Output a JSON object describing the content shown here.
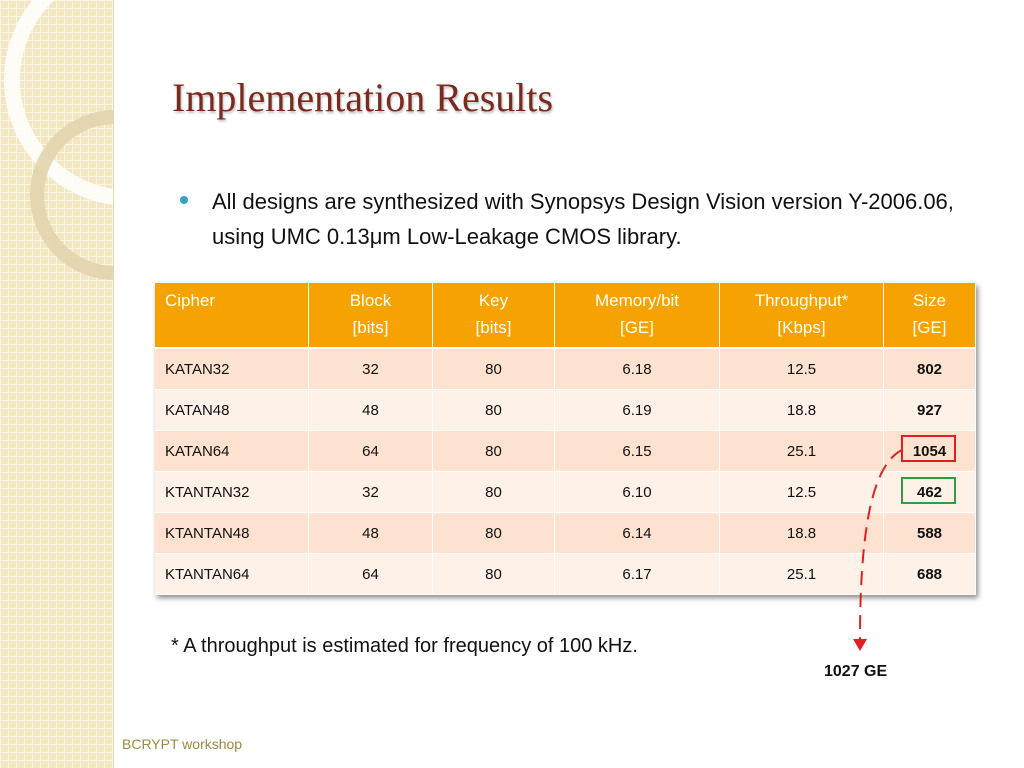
{
  "slide": {
    "title": "Implementation Results",
    "bullet": "All designs are synthesized with Synopsys Design Vision version Y-2006.06, using UMC 0.13μm Low-Leakage CMOS library.",
    "footnote": "* A throughput is estimated for frequency of 100 kHz.",
    "annotation": "1027 GE",
    "footer": "BCRYPT workshop",
    "colors": {
      "title": "#7a2a1f",
      "header": "#f6a200",
      "row_odd": "#fde3cf",
      "row_even": "#fef1e8",
      "highlight_red": "#e02020",
      "highlight_green": "#2e9e3e",
      "bullet": "#33a4c4"
    }
  },
  "table": {
    "headers": [
      {
        "line1": "Cipher",
        "line2": ""
      },
      {
        "line1": "Block",
        "line2": "[bits]"
      },
      {
        "line1": "Key",
        "line2": "[bits]"
      },
      {
        "line1": "Memory/bit",
        "line2": "[GE]"
      },
      {
        "line1": "Throughput*",
        "line2": "[Kbps]"
      },
      {
        "line1": "Size",
        "line2": "[GE]"
      }
    ],
    "rows": [
      {
        "cipher": "KATAN32",
        "block": "32",
        "key": "80",
        "memory": "6.18",
        "throughput": "12.5",
        "size": "802"
      },
      {
        "cipher": "KATAN48",
        "block": "48",
        "key": "80",
        "memory": "6.19",
        "throughput": "18.8",
        "size": "927"
      },
      {
        "cipher": "KATAN64",
        "block": "64",
        "key": "80",
        "memory": "6.15",
        "throughput": "25.1",
        "size": "1054"
      },
      {
        "cipher": "KTANTAN32",
        "block": "32",
        "key": "80",
        "memory": "6.10",
        "throughput": "12.5",
        "size": "462"
      },
      {
        "cipher": "KTANTAN48",
        "block": "48",
        "key": "80",
        "memory": "6.14",
        "throughput": "18.8",
        "size": "588"
      },
      {
        "cipher": "KTANTAN64",
        "block": "64",
        "key": "80",
        "memory": "6.17",
        "throughput": "25.1",
        "size": "688"
      }
    ]
  }
}
